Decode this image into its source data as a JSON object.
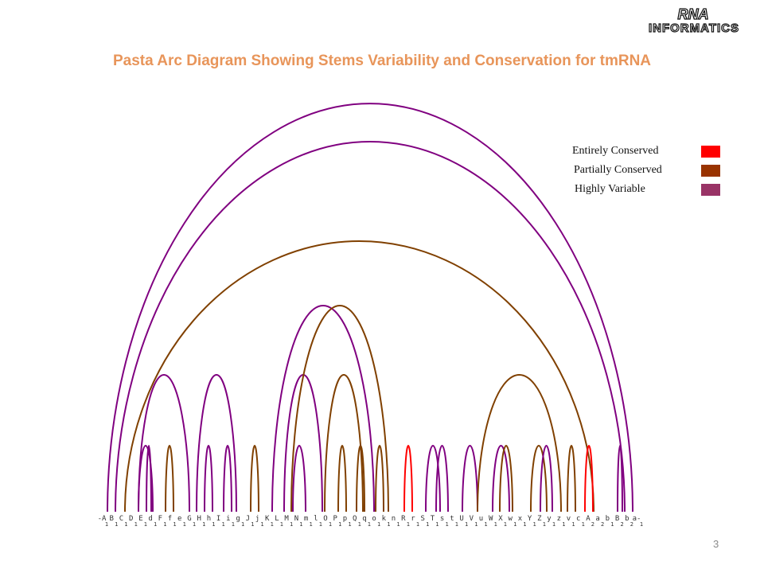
{
  "slide": {
    "title": "Pasta Arc Diagram Showing Stems Variability and Conservation for tmRNA",
    "page_number": "3",
    "logo_text": "RNA INFORMATICS"
  },
  "legend": {
    "items": [
      {
        "label": "Entirely Conserved",
        "color": "#ff0000"
      },
      {
        "label": "Partially Conserved",
        "color": "#993300"
      },
      {
        "label": "Highly Variable",
        "color": "#993366"
      }
    ]
  },
  "diagram": {
    "sequence_labels": [
      "-A",
      "B",
      "C",
      "D",
      "E",
      "d",
      "F",
      "f",
      "e",
      "G",
      "H",
      "h",
      "I",
      "i",
      "g",
      "J",
      "j",
      "K",
      "L",
      "M",
      "N",
      "m",
      "l",
      "O",
      "P",
      "p",
      "Q",
      "q",
      "o",
      "k",
      "n",
      "R",
      "r",
      "S",
      "T",
      "s",
      "t",
      "U",
      "V",
      "u",
      "W",
      "X",
      "w",
      "x",
      "Y",
      "Z",
      "y",
      "z",
      "v",
      "c",
      "A",
      "a",
      "b",
      "B",
      "b",
      "a-"
    ],
    "subscripts": [
      "1",
      "1",
      "1",
      "1",
      "1",
      "1",
      "1",
      "1",
      "1",
      "1",
      "1",
      "1",
      "1",
      "1",
      "1",
      "1",
      "1",
      "1",
      "1",
      "1",
      "1",
      "1",
      "1",
      "1",
      "1",
      "1",
      "1",
      "1",
      "1",
      "1",
      "1",
      "1",
      "1",
      "1",
      "1",
      "1",
      "1",
      "1",
      "1",
      "1",
      "1",
      "1",
      "1",
      "1",
      "1",
      "1",
      "1",
      "1",
      "1",
      "1",
      "2",
      "2",
      "1",
      "2",
      "2",
      "1"
    ],
    "colors": {
      "variable": "#800080",
      "partial": "#804000",
      "conserved": "#ff0000"
    }
  }
}
